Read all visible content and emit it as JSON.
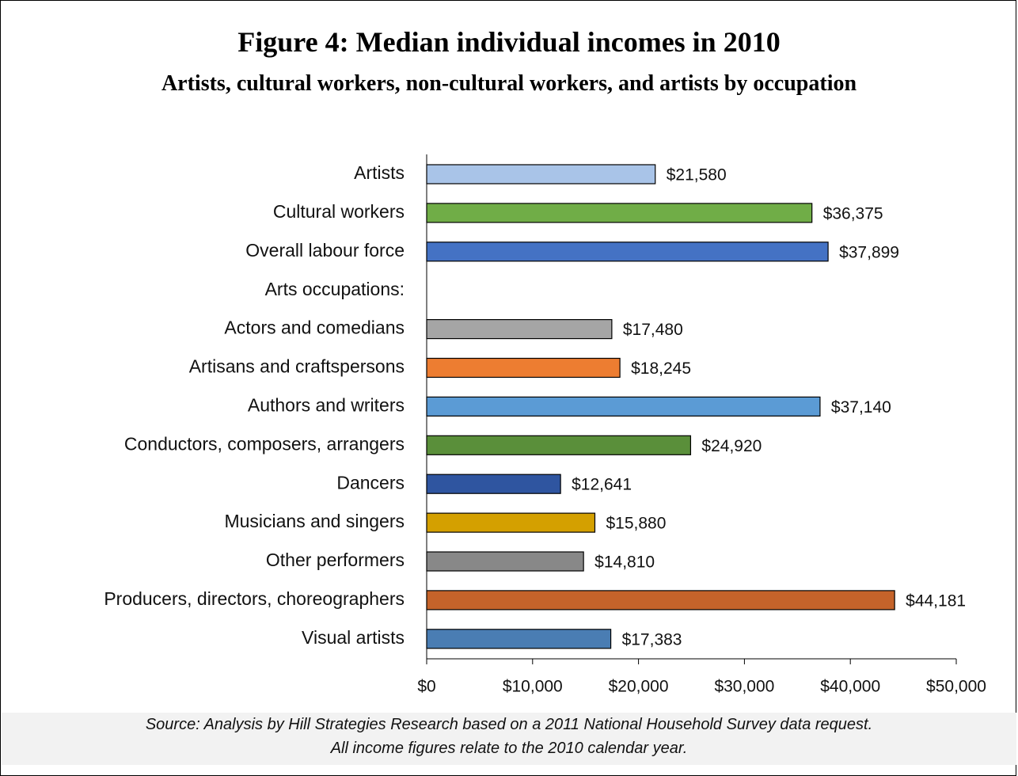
{
  "chart_data": {
    "type": "bar",
    "orientation": "horizontal",
    "title": "Figure 4: Median individual incomes in 2010",
    "subtitle": "Artists, cultural workers, non-cultural workers, and artists by occupation",
    "categories": [
      "Artists",
      "Cultural workers",
      "Overall labour force",
      "Arts occupations:",
      "Actors and comedians",
      "Artisans and craftspersons",
      "Authors and writers",
      "Conductors, composers, arrangers",
      "Dancers",
      "Musicians and singers",
      "Other performers",
      "Producers, directors, choreographers",
      "Visual artists"
    ],
    "values": [
      21580,
      36375,
      37899,
      null,
      17480,
      18245,
      37140,
      24920,
      12641,
      15880,
      14810,
      44181,
      17383
    ],
    "value_labels": [
      "$21,580",
      "$36,375",
      "$37,899",
      null,
      "$17,480",
      "$18,245",
      "$37,140",
      "$24,920",
      "$12,641",
      "$15,880",
      "$14,810",
      "$44,181",
      "$17,383"
    ],
    "colors": [
      "#a9c4e8",
      "#70ad47",
      "#4472c4",
      null,
      "#a5a5a5",
      "#ed7d31",
      "#5b9bd5",
      "#5a8f3a",
      "#2f55a0",
      "#d4a000",
      "#888888",
      "#c5632a",
      "#4a7db3"
    ],
    "xlim": [
      0,
      50000
    ],
    "xticks": [
      {
        "value": 0,
        "label": "$0"
      },
      {
        "value": 10000,
        "label": "$10,000"
      },
      {
        "value": 20000,
        "label": "$20,000"
      },
      {
        "value": 30000,
        "label": "$30,000"
      },
      {
        "value": 40000,
        "label": "$40,000"
      },
      {
        "value": 50000,
        "label": "$50,000"
      }
    ],
    "notes": [
      "Source: Analysis by Hill Strategies Research based on a 2011 National Household Survey data request.",
      "All income figures relate to the 2010 calendar year."
    ]
  }
}
